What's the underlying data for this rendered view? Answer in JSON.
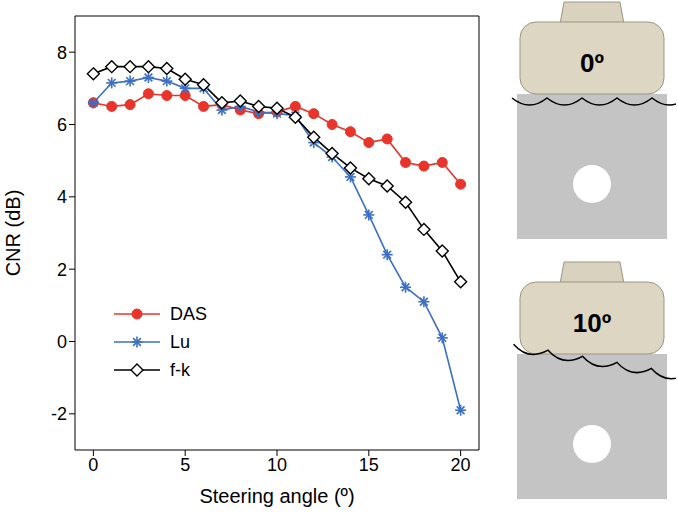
{
  "chart_data": {
    "type": "line",
    "xlabel": "Steering angle (º)",
    "ylabel": "CNR (dB)",
    "x": [
      0,
      1,
      2,
      3,
      4,
      5,
      6,
      7,
      8,
      9,
      10,
      11,
      12,
      13,
      14,
      15,
      16,
      17,
      18,
      19,
      20
    ],
    "xlim": [
      -1,
      21
    ],
    "xticks": [
      0,
      5,
      10,
      15,
      20
    ],
    "ylim": [
      -3,
      9
    ],
    "yticks": [
      -2,
      0,
      2,
      4,
      6,
      8
    ],
    "grid": false,
    "legend": "lower left",
    "annotations": [
      "0º",
      "10º"
    ],
    "series": [
      {
        "name": "DAS",
        "color": "#e8342a",
        "marker": "circle",
        "values": [
          6.6,
          6.5,
          6.55,
          6.85,
          6.8,
          6.8,
          6.5,
          6.55,
          6.4,
          6.3,
          6.35,
          6.5,
          6.3,
          6.0,
          5.8,
          5.5,
          5.6,
          4.95,
          4.85,
          4.95,
          4.35
        ]
      },
      {
        "name": "Lu",
        "color": "#3a6fc4",
        "marker": "asterisk",
        "values": [
          6.6,
          7.15,
          7.2,
          7.3,
          7.2,
          7.0,
          7.0,
          6.4,
          6.5,
          6.35,
          6.3,
          6.25,
          5.5,
          5.1,
          4.55,
          3.5,
          2.4,
          1.5,
          1.1,
          0.1,
          -1.9
        ]
      },
      {
        "name": "f-k",
        "color": "#000000",
        "marker": "diamond",
        "values": [
          7.4,
          7.6,
          7.6,
          7.6,
          7.55,
          7.25,
          7.1,
          6.6,
          6.65,
          6.5,
          6.45,
          6.2,
          5.65,
          5.2,
          4.8,
          4.5,
          4.3,
          3.85,
          3.1,
          2.5,
          1.65
        ]
      }
    ]
  }
}
